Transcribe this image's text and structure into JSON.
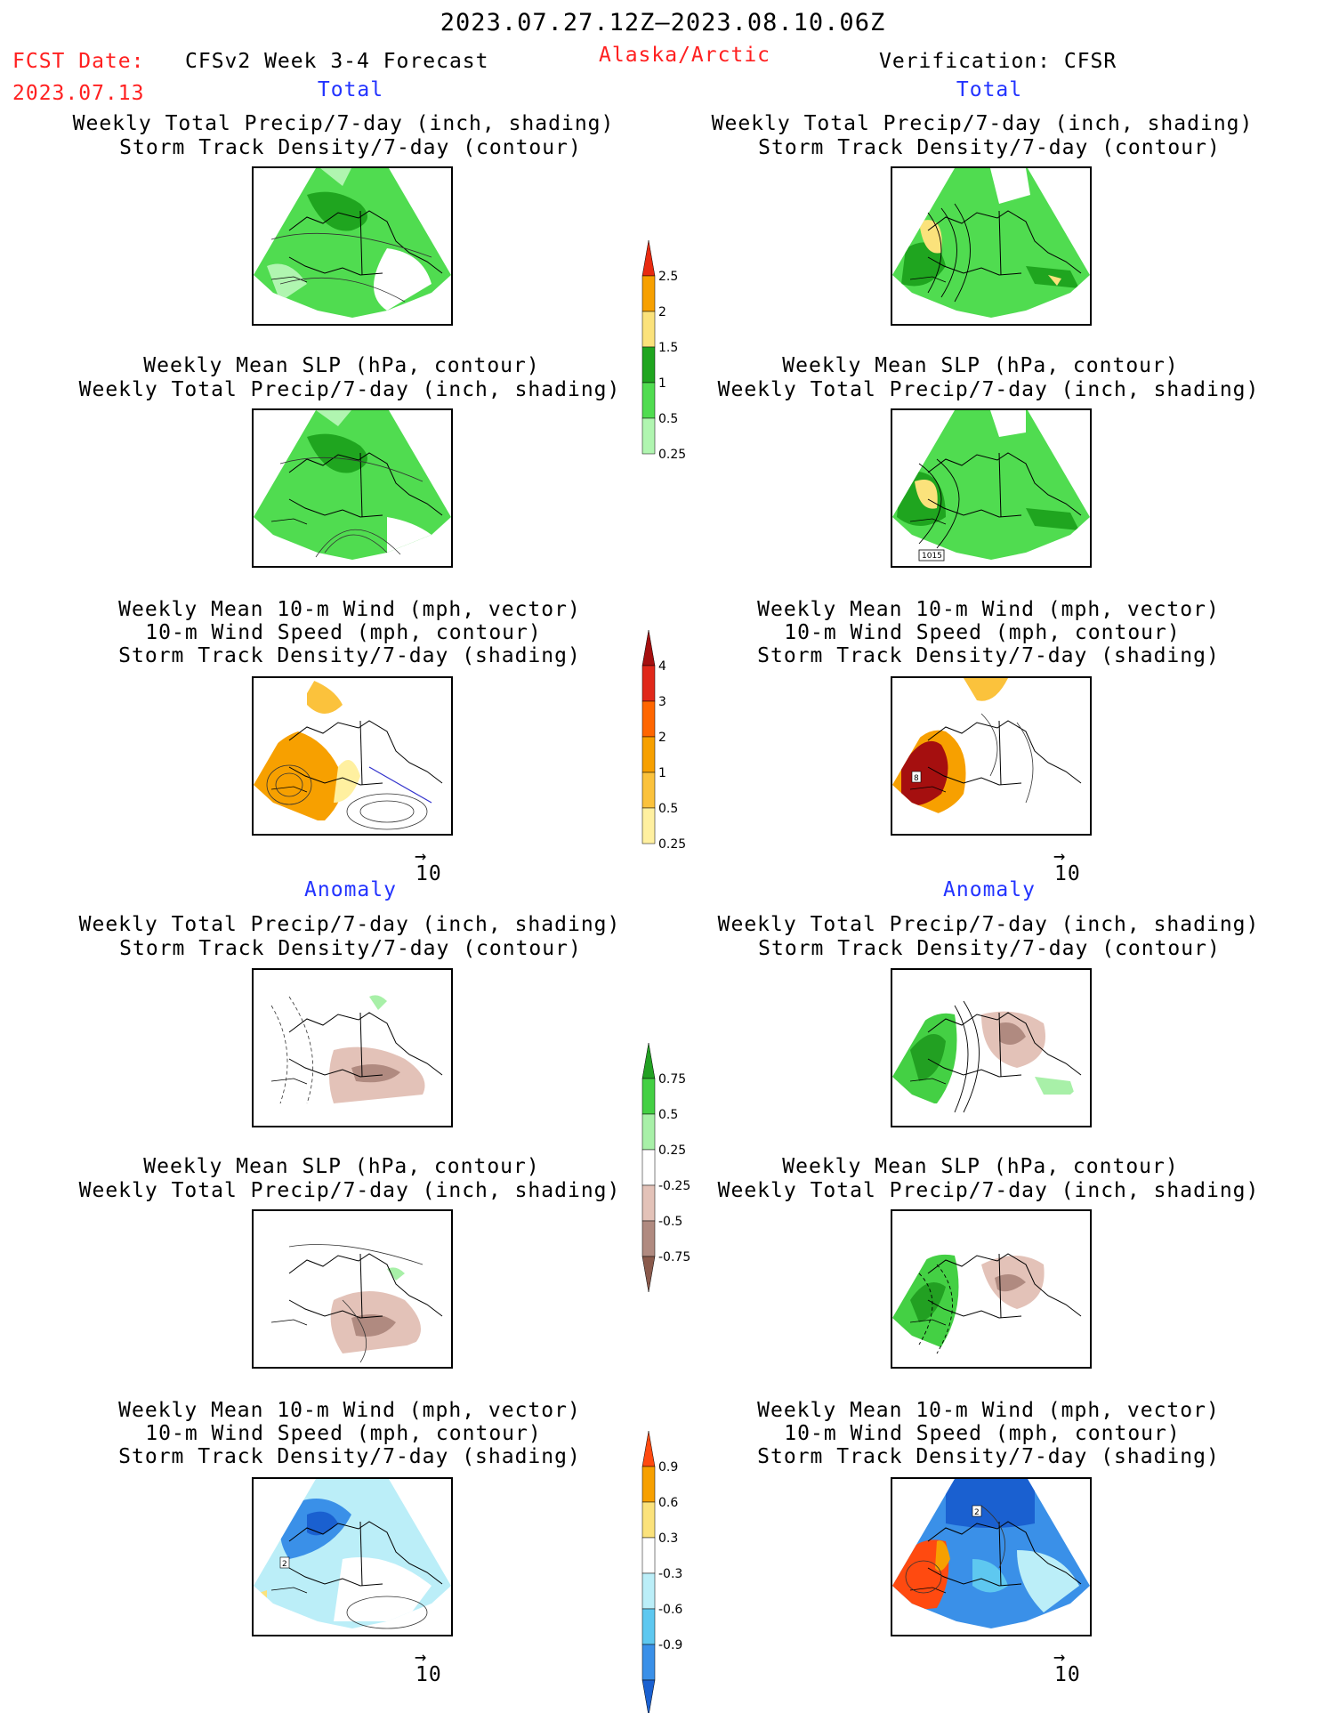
{
  "header": {
    "period": "2023.07.27.12Z–2023.08.10.06Z",
    "fcst_label": "FCST Date:",
    "fcst_date": "2023.07.13",
    "model": "CFSv2 Week 3-4 Forecast",
    "region": "Alaska/Arctic",
    "verification": "Verification: CFSR"
  },
  "sections": {
    "total": "Total",
    "anomaly": "Anomaly"
  },
  "panel_titles": {
    "precip_storm": [
      "Weekly Total Precip/7-day (inch, shading)",
      "Storm Track Density/7-day (contour)"
    ],
    "slp_precip": [
      "Weekly Mean SLP (hPa, contour)",
      "Weekly Total Precip/7-day (inch, shading)"
    ],
    "wind_storm": [
      "Weekly Mean 10-m Wind (mph, vector)",
      "10-m Wind Speed (mph, contour)",
      "Storm Track Density/7-day (shading)"
    ]
  },
  "map_labels": {
    "slp_verif_total": "1015",
    "wind_fcst_verif_total": "8",
    "wind_fcst_anom": "2",
    "wind_verif_anom": "2"
  },
  "vector_ref": {
    "arrow": "→",
    "value": "10"
  },
  "colorbars": {
    "precip_total": {
      "levels": [
        "2.5",
        "2",
        "1.5",
        "1",
        "0.5",
        "0.25"
      ],
      "colors": [
        "#e82a10",
        "#f7a000",
        "#fbe27b",
        "#1fa51f",
        "#50dc50",
        "#b0f5b0"
      ]
    },
    "storm_total": {
      "levels": [
        "4",
        "3",
        "2",
        "1",
        "0.5",
        "0.25"
      ],
      "colors": [
        "#a50f0f",
        "#e0281a",
        "#ff6600",
        "#f7a000",
        "#fbc23c",
        "#fff0a0"
      ]
    },
    "precip_anom": {
      "levels": [
        "0.75",
        "0.5",
        "0.25",
        "-0.25",
        "-0.5",
        "-0.75"
      ],
      "colors": [
        "#22a022",
        "#44d044",
        "#a8f0a8",
        "#ffffff",
        "#e3c2b8",
        "#b08a80",
        "#8a5a4c"
      ]
    },
    "storm_anom": {
      "levels": [
        "0.9",
        "0.6",
        "0.3",
        "-0.3",
        "-0.6",
        "-0.9"
      ],
      "colors": [
        "#ff4a10",
        "#f7a000",
        "#fbe27b",
        "#ffffff",
        "#bbeef8",
        "#5ec8f0",
        "#3a90e8",
        "#1a60d0"
      ]
    }
  }
}
